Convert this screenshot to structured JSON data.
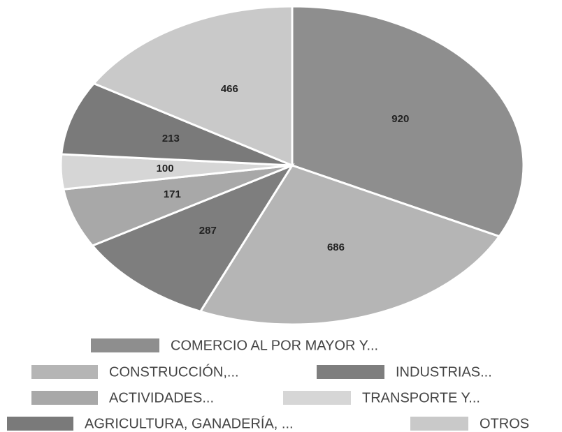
{
  "chart_data": {
    "type": "pie",
    "categories": [
      "COMERCIO AL POR MAYOR Y...",
      "CONSTRUCCIÓN,...",
      "INDUSTRIAS...",
      "ACTIVIDADES...",
      "TRANSPORTE Y...",
      "AGRICULTURA, GANADERÍA, ...",
      "OTROS"
    ],
    "values": [
      920,
      686,
      287,
      171,
      100,
      213,
      466
    ],
    "colors": [
      "#8e8e8e",
      "#b5b5b5",
      "#7e7e7e",
      "#a8a8a8",
      "#d6d6d6",
      "#7a7a7a",
      "#c9c9c9"
    ],
    "legend": "bottom"
  }
}
